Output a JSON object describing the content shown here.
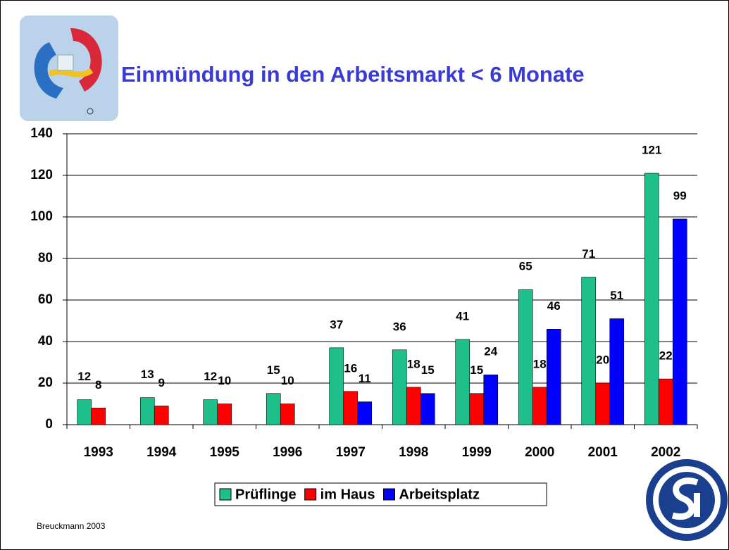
{
  "chart_data": {
    "type": "bar",
    "title": "Einmündung in den Arbeitsmarkt < 6 Monate",
    "footer": "Breuckmann 2003",
    "categories": [
      "1993",
      "1994",
      "1995",
      "1996",
      "1997",
      "1998",
      "1999",
      "2000",
      "2001",
      "2002"
    ],
    "series": [
      {
        "name": "Prüflinge",
        "color": "#1fbf8c",
        "values": [
          12,
          13,
          12,
          15,
          37,
          36,
          41,
          65,
          71,
          121
        ]
      },
      {
        "name": "im Haus",
        "color": "#ff0000",
        "values": [
          8,
          9,
          10,
          10,
          16,
          18,
          15,
          18,
          20,
          22
        ]
      },
      {
        "name": "Arbeitsplatz",
        "color": "#0000ff",
        "values": [
          null,
          null,
          null,
          null,
          11,
          15,
          24,
          46,
          51,
          99
        ]
      }
    ],
    "ylim": [
      0,
      140
    ],
    "yticks": [
      0,
      20,
      40,
      60,
      80,
      100,
      120,
      140
    ],
    "grid": true,
    "legend": "bottom"
  }
}
